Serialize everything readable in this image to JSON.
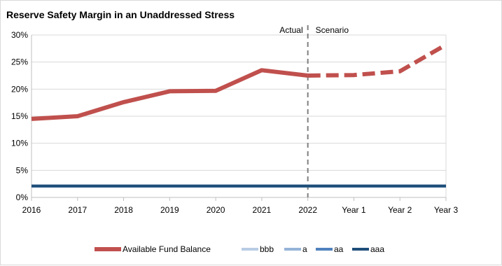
{
  "chart_data": {
    "type": "line",
    "title": "Reserve Safety Margin in an Unaddressed Stress",
    "xlabel": "",
    "ylabel": "",
    "categories": [
      "2016",
      "2017",
      "2018",
      "2019",
      "2020",
      "2021",
      "2022",
      "Year 1",
      "Year 2",
      "Year 3"
    ],
    "ylim": [
      0,
      30
    ],
    "yticks": [
      0,
      5,
      10,
      15,
      20,
      25,
      30
    ],
    "ytick_labels": [
      "0%",
      "5%",
      "10%",
      "15%",
      "20%",
      "25%",
      "30%"
    ],
    "grid": true,
    "legend_position": "bottom",
    "divider_category": "2022",
    "annotations": {
      "left": "Actual",
      "right": "Scenario"
    },
    "series": [
      {
        "name": "Available Fund Balance",
        "color": "#c0504d",
        "actual_values": [
          14.5,
          15.0,
          17.6,
          19.6,
          19.7,
          23.5,
          22.5,
          null,
          null,
          null
        ],
        "scenario_values": [
          null,
          null,
          null,
          null,
          null,
          null,
          22.5,
          22.6,
          23.3,
          28.2
        ]
      },
      {
        "name": "bbb",
        "color": "#b8cce4",
        "values": [
          2.1,
          2.1,
          2.1,
          2.1,
          2.1,
          2.1,
          2.1,
          2.1,
          2.1,
          2.1
        ]
      },
      {
        "name": "a",
        "color": "#95b3d7",
        "values": [
          2.1,
          2.1,
          2.1,
          2.1,
          2.1,
          2.1,
          2.1,
          2.1,
          2.1,
          2.1
        ]
      },
      {
        "name": "aa",
        "color": "#4f81bd",
        "values": [
          2.1,
          2.1,
          2.1,
          2.1,
          2.1,
          2.1,
          2.1,
          2.1,
          2.1,
          2.1
        ]
      },
      {
        "name": "aaa",
        "color": "#1f4e79",
        "values": [
          2.1,
          2.1,
          2.1,
          2.1,
          2.1,
          2.1,
          2.1,
          2.1,
          2.1,
          2.1
        ]
      }
    ]
  }
}
